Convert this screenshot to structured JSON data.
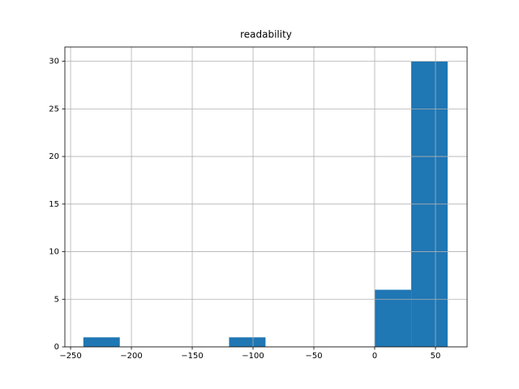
{
  "chart_data": {
    "type": "histogram",
    "title": "readability",
    "bins": [
      -239.5,
      -209.55,
      -179.6,
      -149.65,
      -119.7,
      -89.75,
      -59.8,
      -29.85,
      0.1,
      30.05,
      60.0
    ],
    "counts": [
      1,
      0,
      0,
      0,
      1,
      0,
      0,
      0,
      6,
      30
    ],
    "color": "#1f77b4",
    "xlim": [
      -254.7,
      76
    ],
    "ylim": [
      0,
      31.5
    ],
    "xticks": [
      {
        "value": -250,
        "label": "−250"
      },
      {
        "value": -200,
        "label": "−200"
      },
      {
        "value": -150,
        "label": "−150"
      },
      {
        "value": -100,
        "label": "−100"
      },
      {
        "value": -50,
        "label": "−50"
      },
      0,
      50
    ],
    "yticks": [
      0,
      5,
      10,
      15,
      20,
      25,
      30
    ],
    "grid": true
  }
}
